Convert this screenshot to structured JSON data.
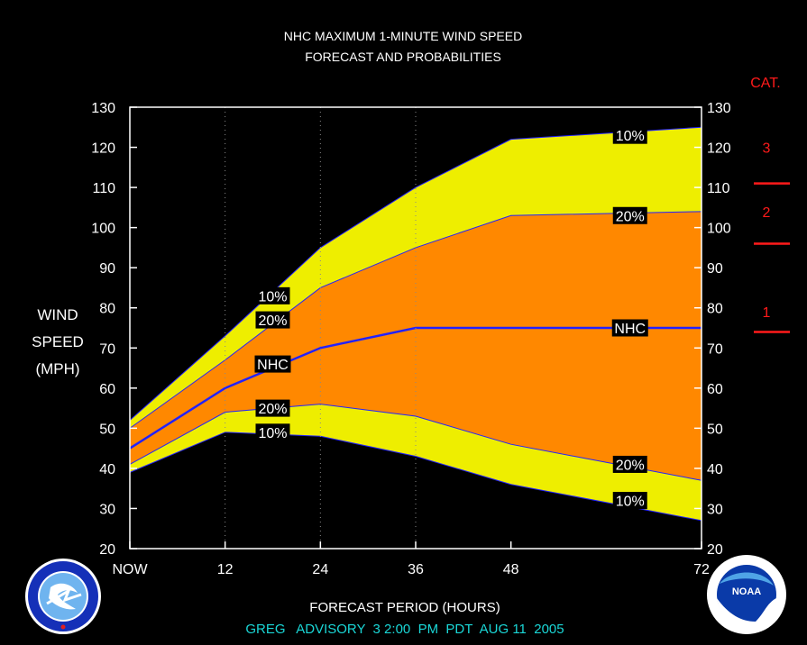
{
  "title_line1": "NHC MAXIMUM 1-MINUTE WIND SPEED",
  "title_line2": "FORECAST AND PROBABILITIES",
  "ylabel_lines": [
    "WIND",
    "SPEED",
    "(MPH)"
  ],
  "xlabel": "FORECAST PERIOD (HOURS)",
  "advisory": "GREG   ADVISORY  3 2:00  PM  PDT  AUG 11  2005",
  "cat_title": "CAT.",
  "categories": [
    {
      "label": "1",
      "center": 79
    },
    {
      "label": "2",
      "center": 104
    },
    {
      "label": "3",
      "center": 120
    }
  ],
  "category_boundaries": [
    74,
    96,
    111
  ],
  "colors": {
    "background": "#000000",
    "outer_band": "#eeee00",
    "inner_band": "#ff8800",
    "nhc_line": "#2222ff",
    "category": "#ff1a1a",
    "advisory_text": "#1ad6d6"
  },
  "chart_data": {
    "type": "area",
    "x": [
      0,
      12,
      24,
      36,
      48,
      72
    ],
    "x_tick_labels": [
      "NOW",
      "12",
      "24",
      "36",
      "48",
      "72"
    ],
    "xlim": [
      0,
      72
    ],
    "ylim": [
      20,
      130
    ],
    "y_ticks": [
      20,
      30,
      40,
      50,
      60,
      70,
      80,
      90,
      100,
      110,
      120,
      130
    ],
    "grid_x": [
      12,
      24,
      36
    ],
    "series": [
      {
        "name": "10%",
        "values": [
          52,
          73,
          95,
          110,
          122,
          125
        ]
      },
      {
        "name": "20%",
        "values": [
          50,
          67,
          85,
          95,
          103,
          104
        ]
      },
      {
        "name": "NHC",
        "values": [
          45,
          60,
          70,
          75,
          75,
          75
        ]
      },
      {
        "name": "20%",
        "values": [
          41,
          54,
          56,
          53,
          46,
          37
        ]
      },
      {
        "name": "10%",
        "values": [
          39,
          49,
          48,
          43,
          36,
          27
        ]
      }
    ],
    "labels": [
      {
        "text": "10%",
        "x": 63,
        "y": 123
      },
      {
        "text": "20%",
        "x": 63,
        "y": 103
      },
      {
        "text": "NHC",
        "x": 63,
        "y": 75
      },
      {
        "text": "20%",
        "x": 63,
        "y": 41
      },
      {
        "text": "10%",
        "x": 63,
        "y": 32
      },
      {
        "text": "10%",
        "x": 18,
        "y": 83
      },
      {
        "text": "20%",
        "x": 18,
        "y": 77
      },
      {
        "text": "NHC",
        "x": 18,
        "y": 66
      },
      {
        "text": "20%",
        "x": 18,
        "y": 55
      },
      {
        "text": "10%",
        "x": 18,
        "y": 49
      }
    ]
  }
}
